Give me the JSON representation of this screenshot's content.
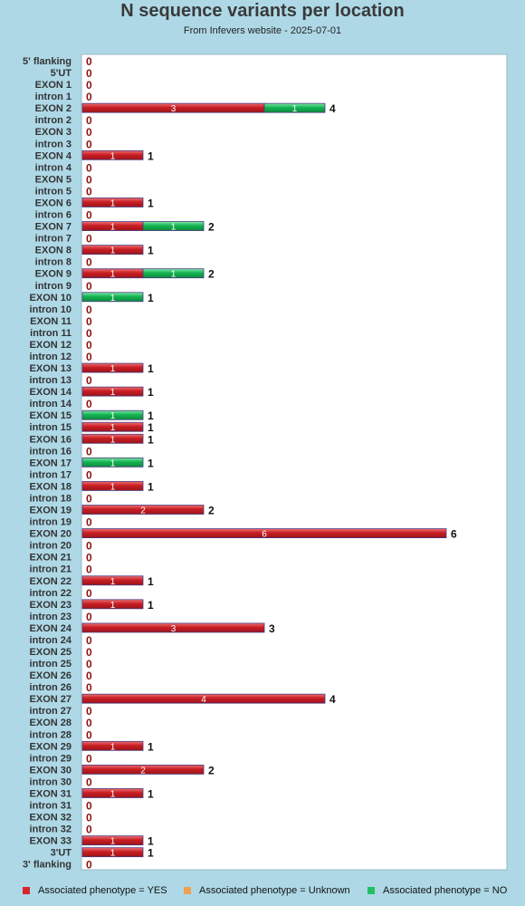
{
  "chart_data": {
    "type": "bar",
    "orientation": "horizontal",
    "stacked": true,
    "title": "N sequence variants per location",
    "subtitle": "From Infevers website - 2025-07-01",
    "categories": [
      "5' flanking",
      "5'UT",
      "EXON 1",
      "intron 1",
      "EXON 2",
      "intron 2",
      "EXON 3",
      "intron 3",
      "EXON 4",
      "intron 4",
      "EXON 5",
      "intron 5",
      "EXON 6",
      "intron 6",
      "EXON 7",
      "intron 7",
      "EXON 8",
      "intron 8",
      "EXON 9",
      "intron 9",
      "EXON 10",
      "intron 10",
      "EXON 11",
      "intron 11",
      "EXON 12",
      "intron 12",
      "EXON 13",
      "intron 13",
      "EXON 14",
      "intron 14",
      "EXON 15",
      "intron 15",
      "EXON 16",
      "intron 16",
      "EXON 17",
      "intron 17",
      "EXON 18",
      "intron 18",
      "EXON 19",
      "intron 19",
      "EXON 20",
      "intron 20",
      "EXON 21",
      "intron 21",
      "EXON 22",
      "intron 22",
      "EXON 23",
      "intron 23",
      "EXON 24",
      "intron 24",
      "EXON 25",
      "intron 25",
      "EXON 26",
      "intron 26",
      "EXON 27",
      "intron 27",
      "EXON 28",
      "intron 28",
      "EXON 29",
      "intron 29",
      "EXON 30",
      "intron 30",
      "EXON 31",
      "intron 31",
      "EXON 32",
      "intron 32",
      "EXON 33",
      "3'UT",
      "3' flanking"
    ],
    "series": [
      {
        "name": "Associated phenotype = YES",
        "color": "#d9262b",
        "values": [
          0,
          0,
          0,
          0,
          3,
          0,
          0,
          0,
          1,
          0,
          0,
          0,
          1,
          0,
          1,
          0,
          1,
          0,
          1,
          0,
          0,
          0,
          0,
          0,
          0,
          0,
          1,
          0,
          1,
          0,
          0,
          1,
          1,
          0,
          0,
          0,
          1,
          0,
          2,
          0,
          6,
          0,
          0,
          0,
          1,
          0,
          1,
          0,
          3,
          0,
          0,
          0,
          0,
          0,
          4,
          0,
          0,
          0,
          1,
          0,
          2,
          0,
          1,
          0,
          0,
          0,
          1,
          1,
          0
        ]
      },
      {
        "name": "Associated phenotype = Unknown",
        "color": "#f0a050",
        "values": [
          0,
          0,
          0,
          0,
          0,
          0,
          0,
          0,
          0,
          0,
          0,
          0,
          0,
          0,
          0,
          0,
          0,
          0,
          0,
          0,
          0,
          0,
          0,
          0,
          0,
          0,
          0,
          0,
          0,
          0,
          0,
          0,
          0,
          0,
          0,
          0,
          0,
          0,
          0,
          0,
          0,
          0,
          0,
          0,
          0,
          0,
          0,
          0,
          0,
          0,
          0,
          0,
          0,
          0,
          0,
          0,
          0,
          0,
          0,
          0,
          0,
          0,
          0,
          0,
          0,
          0,
          0,
          0,
          0
        ]
      },
      {
        "name": "Associated phenotype = NO",
        "color": "#22c060",
        "values": [
          0,
          0,
          0,
          0,
          1,
          0,
          0,
          0,
          0,
          0,
          0,
          0,
          0,
          0,
          1,
          0,
          0,
          0,
          1,
          0,
          1,
          0,
          0,
          0,
          0,
          0,
          0,
          0,
          0,
          0,
          1,
          0,
          0,
          0,
          1,
          0,
          0,
          0,
          0,
          0,
          0,
          0,
          0,
          0,
          0,
          0,
          0,
          0,
          0,
          0,
          0,
          0,
          0,
          0,
          0,
          0,
          0,
          0,
          0,
          0,
          0,
          0,
          0,
          0,
          0,
          0,
          0,
          0,
          0
        ]
      }
    ],
    "xlim": [
      0,
      7
    ],
    "grid": false,
    "legend_position": "bottom"
  }
}
